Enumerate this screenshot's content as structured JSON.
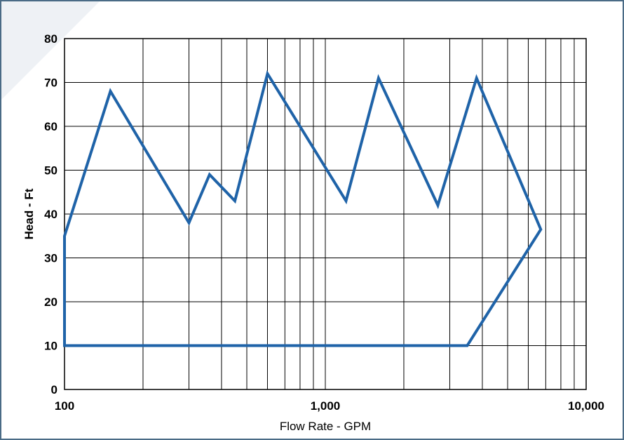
{
  "chart_data": {
    "type": "line",
    "title": "",
    "xlabel": "Flow Rate - GPM",
    "ylabel": "Head - Ft",
    "x_scale": "log",
    "xlim": [
      100,
      10000
    ],
    "ylim": [
      0,
      80
    ],
    "x_ticks": [
      {
        "value": 100,
        "label": "100"
      },
      {
        "value": 1000,
        "label": "1,000"
      },
      {
        "value": 10000,
        "label": "10,000"
      }
    ],
    "y_ticks": [
      {
        "value": 0,
        "label": "0"
      },
      {
        "value": 10,
        "label": "10"
      },
      {
        "value": 20,
        "label": "20"
      },
      {
        "value": 30,
        "label": "30"
      },
      {
        "value": 40,
        "label": "40"
      },
      {
        "value": 50,
        "label": "50"
      },
      {
        "value": 60,
        "label": "60"
      },
      {
        "value": 70,
        "label": "70"
      },
      {
        "value": 80,
        "label": "80"
      }
    ],
    "x_gridlines": [
      100,
      200,
      300,
      400,
      500,
      600,
      700,
      800,
      900,
      1000,
      2000,
      3000,
      4000,
      5000,
      6000,
      7000,
      8000,
      9000,
      10000
    ],
    "grid": true,
    "legend": "none",
    "series": [
      {
        "line_color": "#1f63a8",
        "closed": true,
        "x": [
          100,
          150,
          300,
          360,
          450,
          600,
          1200,
          1600,
          2700,
          3800,
          6700,
          3500,
          100
        ],
        "y": [
          35,
          68,
          38,
          49,
          43,
          72,
          43,
          71,
          42,
          71,
          36.5,
          10,
          10
        ]
      }
    ]
  }
}
